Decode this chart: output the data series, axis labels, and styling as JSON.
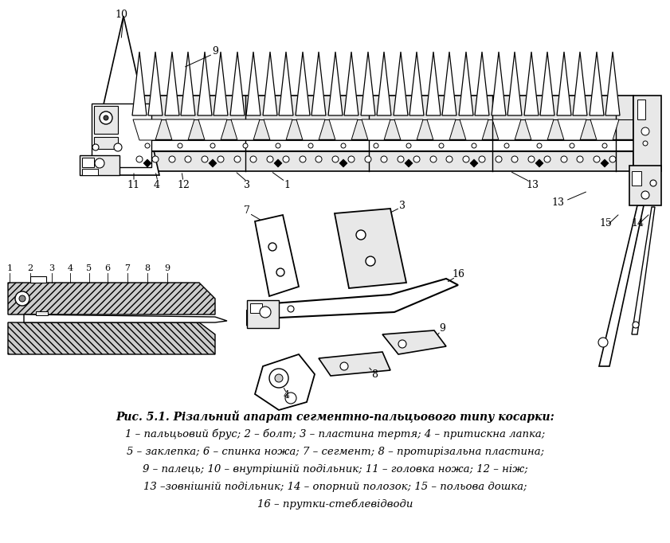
{
  "title_line": "Рис. 5.1. Різальний апарат сегментно-пальцьового типу косарки:",
  "caption_lines": [
    "1 – пальцьовий брус; 2 – болт; 3 – пластина тертя; 4 – притискна лапка;",
    "5 – заклепка; 6 – спинка ножа; 7 – сегмент; 8 – протирізальна пластина;",
    "9 – палець; 10 – внутрішній подільник; 11 – головка ножа; 12 – ніж;",
    "13 –зовнішній подільник; 14 – опорний полозок; 15 – польова дошка;",
    "16 – прутки-стеблевідводи"
  ],
  "bg_color": "#ffffff",
  "text_color": "#000000",
  "fig_width": 8.41,
  "fig_height": 6.82,
  "dpi": 100
}
